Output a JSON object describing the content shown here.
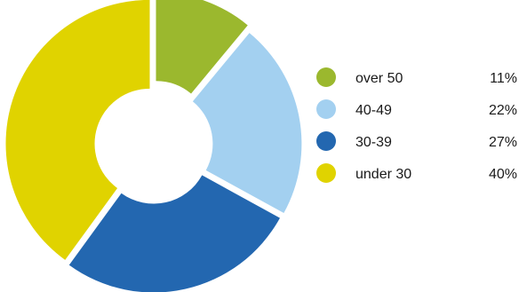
{
  "chart_data": {
    "type": "pie",
    "donut": true,
    "legend_position": "right",
    "slices": [
      {
        "label": "over 50",
        "value": 11,
        "value_label": "11%",
        "color": "#9bb82e"
      },
      {
        "label": "40-49",
        "value": 22,
        "value_label": "22%",
        "color": "#a3d0f0"
      },
      {
        "label": "30-39",
        "value": 27,
        "value_label": "27%",
        "color": "#2367b0"
      },
      {
        "label": "under 30",
        "value": 40,
        "value_label": "40%",
        "color": "#e0d300"
      }
    ]
  }
}
